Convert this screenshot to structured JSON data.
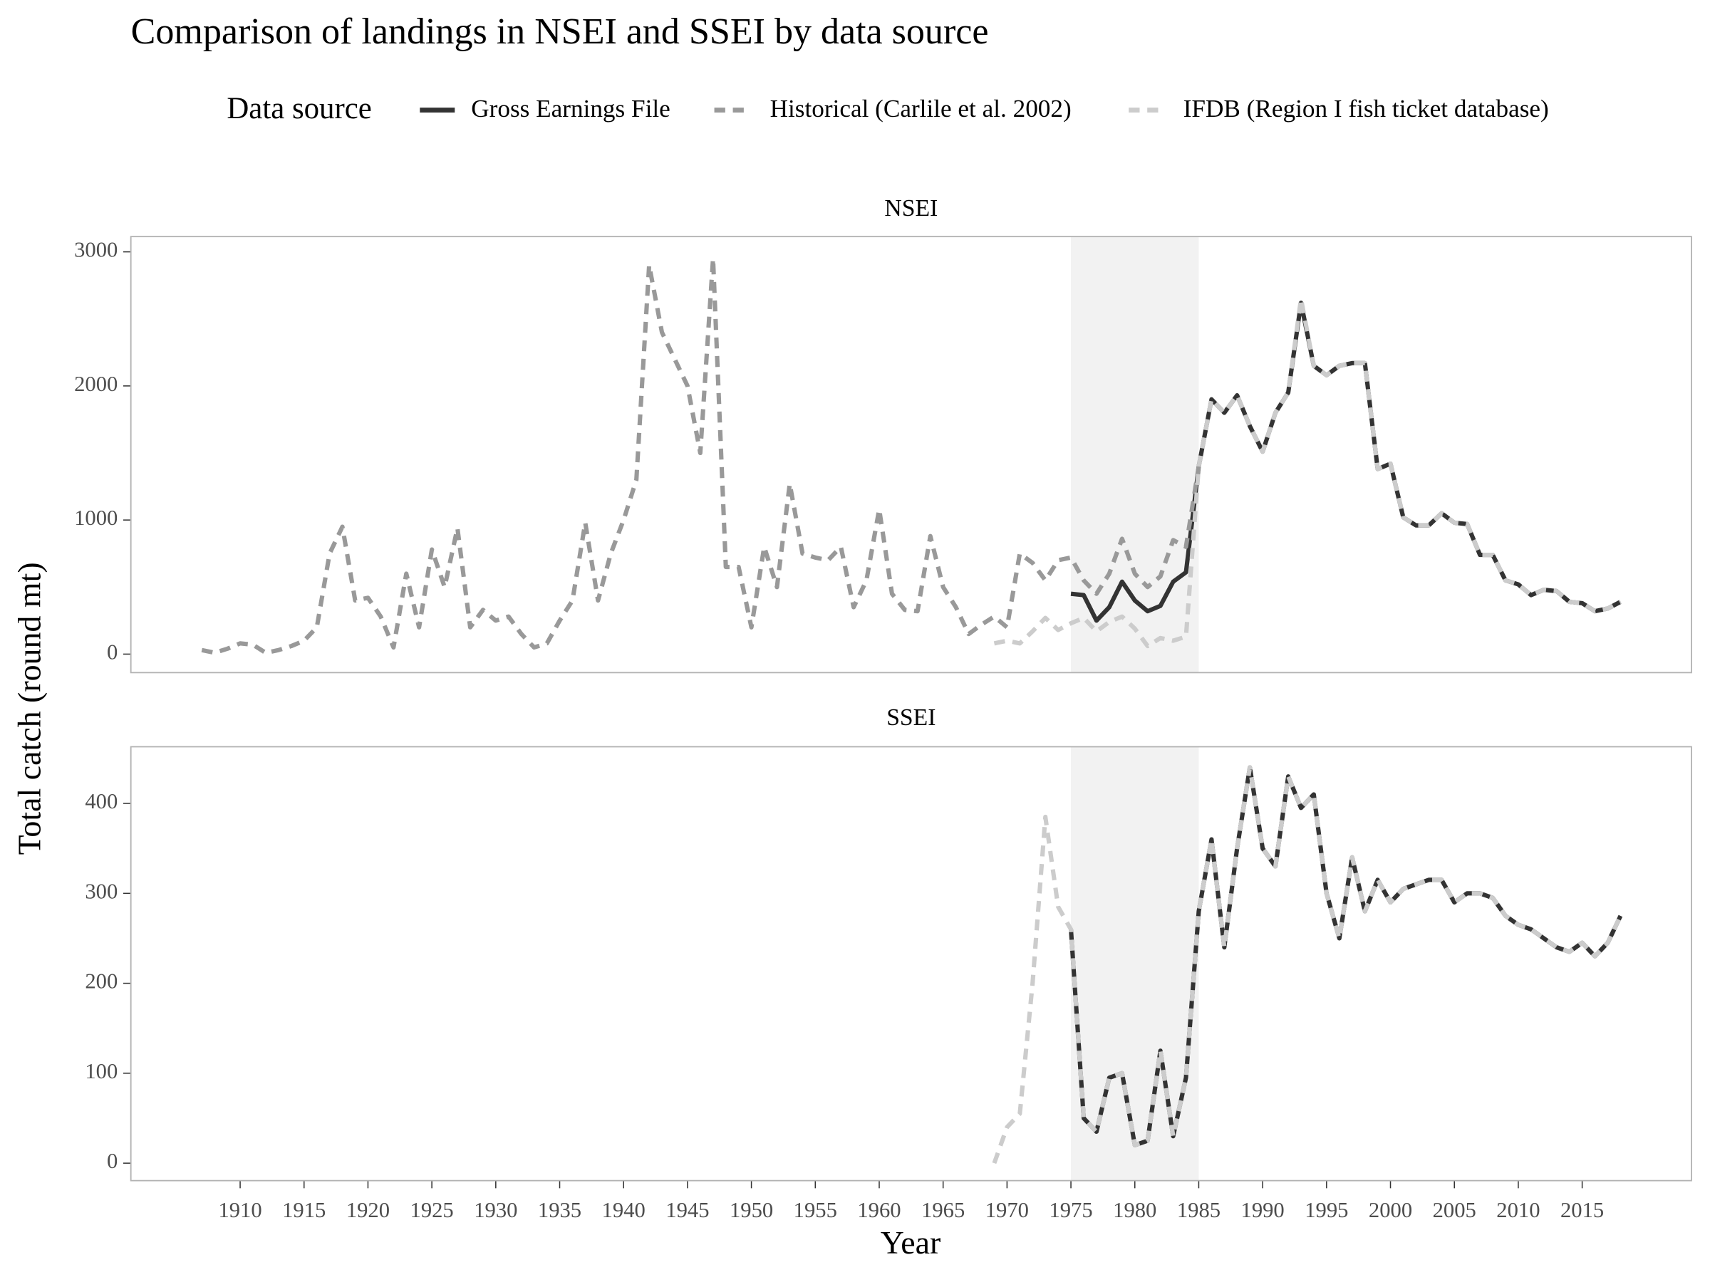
{
  "title": "Comparison of landings in NSEI and SSEI by data source",
  "legend_title": "Data source",
  "xlabel": "Year",
  "ylabel": "Total catch (round mt)",
  "chart_data": [
    {
      "type": "line",
      "title": "NSEI",
      "xlim": [
        1901.45,
        2023.55
      ],
      "ylim": [
        -138,
        3114
      ],
      "yticks": [
        0,
        1000,
        2000,
        3000
      ],
      "shade": [
        1975,
        1985
      ],
      "shade_color": "#f2f2f2",
      "series": [
        {
          "name": "Gross Earnings File",
          "color": "#333333",
          "dash": "solid",
          "x": [
            1975,
            1976,
            1977,
            1978,
            1979,
            1980,
            1981,
            1982,
            1983,
            1984,
            1985,
            1986,
            1987,
            1988,
            1989,
            1990,
            1991,
            1992,
            1993,
            1994,
            1995,
            1996,
            1997,
            1998,
            1999,
            2000,
            2001,
            2002,
            2003,
            2004,
            2005,
            2006,
            2007,
            2008,
            2009,
            2010,
            2011,
            2012,
            2013,
            2014,
            2015,
            2016,
            2017,
            2018
          ],
          "values": [
            450,
            440,
            250,
            350,
            540,
            400,
            320,
            360,
            540,
            610,
            1400,
            1900,
            1800,
            1930,
            1700,
            1510,
            1800,
            1950,
            2620,
            2150,
            2080,
            2150,
            2170,
            2170,
            1380,
            1420,
            1020,
            960,
            960,
            1050,
            980,
            970,
            740,
            740,
            550,
            520,
            440,
            480,
            470,
            390,
            380,
            320,
            340,
            390
          ]
        },
        {
          "name": "Historical (Carlile et al. 2002)",
          "color": "#999999",
          "dash": "dashed",
          "x": [
            1907,
            1908,
            1909,
            1910,
            1911,
            1912,
            1913,
            1914,
            1915,
            1916,
            1917,
            1918,
            1919,
            1920,
            1921,
            1922,
            1923,
            1924,
            1925,
            1926,
            1927,
            1928,
            1929,
            1930,
            1931,
            1932,
            1933,
            1934,
            1935,
            1936,
            1937,
            1938,
            1939,
            1940,
            1941,
            1942,
            1943,
            1944,
            1945,
            1946,
            1947,
            1948,
            1949,
            1950,
            1951,
            1952,
            1953,
            1954,
            1955,
            1956,
            1957,
            1958,
            1959,
            1960,
            1961,
            1962,
            1963,
            1964,
            1965,
            1966,
            1967,
            1968,
            1969,
            1970,
            1971,
            1972,
            1973,
            1974,
            1975,
            1976,
            1977,
            1978,
            1979,
            1980,
            1981,
            1982,
            1983,
            1984,
            1985
          ],
          "values": [
            30,
            10,
            40,
            80,
            70,
            10,
            30,
            60,
            100,
            200,
            750,
            950,
            400,
            420,
            280,
            50,
            600,
            200,
            780,
            500,
            940,
            200,
            330,
            250,
            280,
            150,
            50,
            80,
            250,
            400,
            980,
            400,
            750,
            1000,
            1300,
            2900,
            2400,
            2200,
            2000,
            1500,
            2950,
            650,
            650,
            200,
            800,
            500,
            1270,
            750,
            720,
            700,
            800,
            350,
            550,
            1080,
            450,
            330,
            320,
            880,
            500,
            350,
            150,
            220,
            280,
            200,
            750,
            680,
            550,
            700,
            720,
            550,
            450,
            600,
            860,
            600,
            500,
            580,
            850,
            800,
            1400
          ]
        },
        {
          "name": "IFDB (Region I fish ticket database)",
          "color": "#cccccc",
          "dash": "dashed",
          "x": [
            1969,
            1970,
            1971,
            1972,
            1973,
            1974,
            1975,
            1976,
            1977,
            1978,
            1979,
            1980,
            1981,
            1982,
            1983,
            1984,
            1985,
            1986,
            1987,
            1988,
            1989,
            1990,
            1991,
            1992,
            1993,
            1994,
            1995,
            1996,
            1997,
            1998,
            1999,
            2000,
            2001,
            2002,
            2003,
            2004,
            2005,
            2006,
            2007,
            2008,
            2009,
            2010,
            2011,
            2012,
            2013,
            2014,
            2015,
            2016,
            2017,
            2018
          ],
          "values": [
            80,
            100,
            80,
            170,
            270,
            180,
            230,
            270,
            170,
            240,
            280,
            190,
            60,
            120,
            100,
            130,
            1400,
            1900,
            1800,
            1930,
            1700,
            1510,
            1800,
            1950,
            2650,
            2150,
            2080,
            2150,
            2170,
            2170,
            1380,
            1420,
            1020,
            960,
            960,
            1050,
            980,
            970,
            740,
            740,
            550,
            520,
            440,
            480,
            470,
            390,
            380,
            320,
            340,
            390
          ]
        }
      ]
    },
    {
      "type": "line",
      "title": "SSEI",
      "xlim": [
        1901.45,
        2023.55
      ],
      "ylim": [
        -19.4,
        463
      ],
      "yticks": [
        0,
        100,
        200,
        300,
        400
      ],
      "xticks": [
        1910,
        1915,
        1920,
        1925,
        1930,
        1935,
        1940,
        1945,
        1950,
        1955,
        1960,
        1965,
        1970,
        1975,
        1980,
        1985,
        1990,
        1995,
        2000,
        2005,
        2010,
        2015
      ],
      "shade": [
        1975,
        1985
      ],
      "shade_color": "#f2f2f2",
      "series": [
        {
          "color": "#333333",
          "dash": "solid",
          "x": [
            1975,
            1976,
            1977,
            1978,
            1979,
            1980,
            1981,
            1982,
            1983,
            1984,
            1985,
            1986,
            1987,
            1988,
            1989,
            1990,
            1991,
            1992,
            1993,
            1994,
            1995,
            1996,
            1997,
            1998,
            1999,
            2000,
            2001,
            2002,
            2003,
            2004,
            2005,
            2006,
            2007,
            2008,
            2009,
            2010,
            2011,
            2012,
            2013,
            2014,
            2015,
            2016,
            2017,
            2018
          ],
          "values": [
            260,
            50,
            35,
            95,
            100,
            20,
            25,
            125,
            30,
            95,
            280,
            360,
            240,
            350,
            440,
            350,
            330,
            430,
            395,
            410,
            300,
            250,
            340,
            280,
            315,
            290,
            305,
            310,
            315,
            315,
            290,
            300,
            300,
            295,
            275,
            265,
            260,
            250,
            240,
            235,
            245,
            230,
            245,
            275
          ]
        },
        {
          "color": "#cccccc",
          "dash": "dashed",
          "x": [
            1969,
            1970,
            1971,
            1972,
            1973,
            1974,
            1975,
            1976,
            1977,
            1978,
            1979,
            1980,
            1981,
            1982,
            1983,
            1984,
            1985,
            1986,
            1987,
            1988,
            1989,
            1990,
            1991,
            1992,
            1993,
            1994,
            1995,
            1996,
            1997,
            1998,
            1999,
            2000,
            2001,
            2002,
            2003,
            2004,
            2005,
            2006,
            2007,
            2008,
            2009,
            2010,
            2011,
            2012,
            2013,
            2014,
            2015,
            2016,
            2017,
            2018
          ],
          "values": [
            0,
            40,
            55,
            200,
            385,
            285,
            260,
            50,
            35,
            95,
            100,
            20,
            25,
            125,
            30,
            95,
            280,
            360,
            240,
            350,
            440,
            350,
            330,
            430,
            395,
            410,
            300,
            250,
            340,
            280,
            315,
            290,
            305,
            310,
            315,
            315,
            290,
            300,
            300,
            295,
            275,
            265,
            260,
            250,
            240,
            235,
            245,
            230,
            245,
            275
          ]
        }
      ]
    }
  ]
}
